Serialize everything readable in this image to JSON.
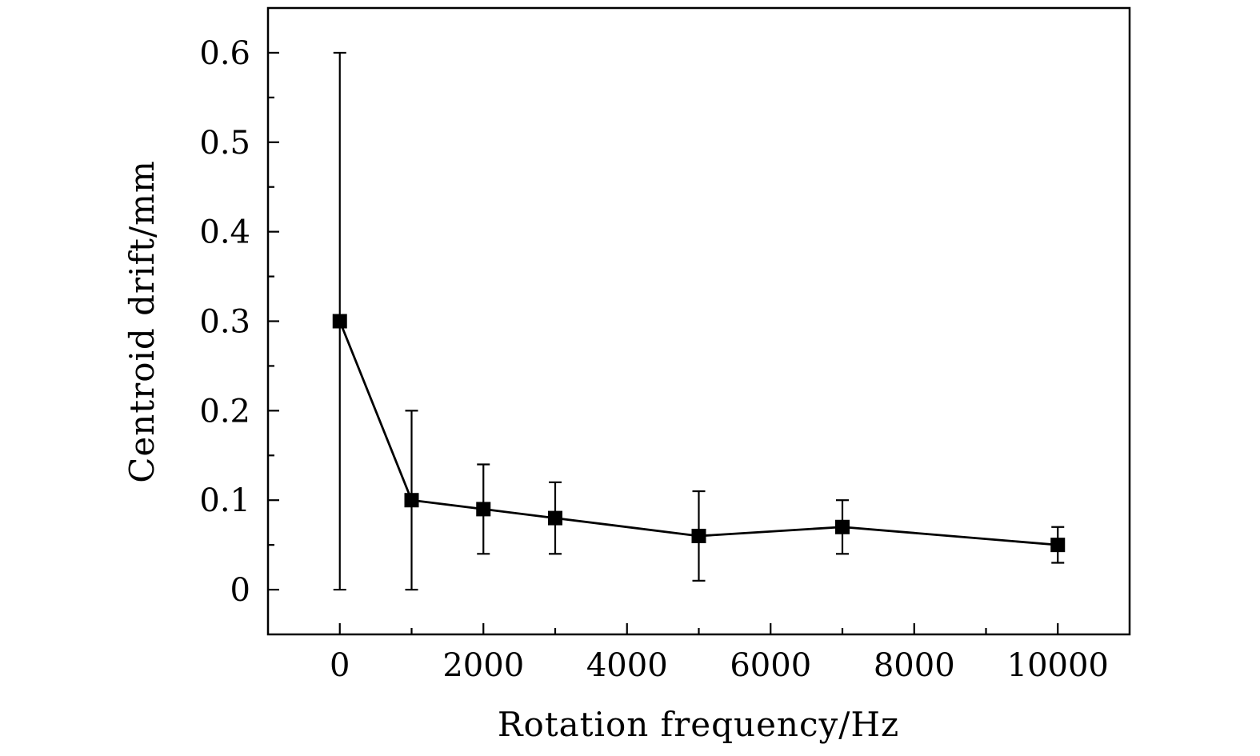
{
  "chart_data": {
    "type": "scatter",
    "title": "",
    "xlabel": "Rotation frequency/Hz",
    "ylabel": "Centroid drift/mm",
    "xlim": [
      -1000,
      11000
    ],
    "ylim": [
      -0.05,
      0.65
    ],
    "x_ticks": [
      0,
      2000,
      4000,
      6000,
      8000,
      10000
    ],
    "x_tick_labels": [
      "0",
      "2000",
      "4000",
      "6000",
      "8000",
      "10000"
    ],
    "y_ticks": [
      0,
      0.1,
      0.2,
      0.3,
      0.4,
      0.5,
      0.6
    ],
    "y_tick_labels": [
      "0",
      "0.1",
      "0.2",
      "0.3",
      "0.4",
      "0.5",
      "0.6"
    ],
    "grid": false,
    "legend": "none",
    "marker": "square",
    "line": "solid",
    "series": [
      {
        "x": [
          0,
          1000,
          2000,
          3000,
          5000,
          7000,
          10000
        ],
        "y": [
          0.3,
          0.1,
          0.09,
          0.08,
          0.06,
          0.07,
          0.05
        ],
        "err_low": [
          0.0,
          0.0,
          0.04,
          0.04,
          0.01,
          0.04,
          0.03
        ],
        "err_high": [
          0.6,
          0.2,
          0.14,
          0.12,
          0.11,
          0.1,
          0.07
        ]
      }
    ],
    "colors": {
      "line": "#000000",
      "marker": "#000000"
    }
  }
}
